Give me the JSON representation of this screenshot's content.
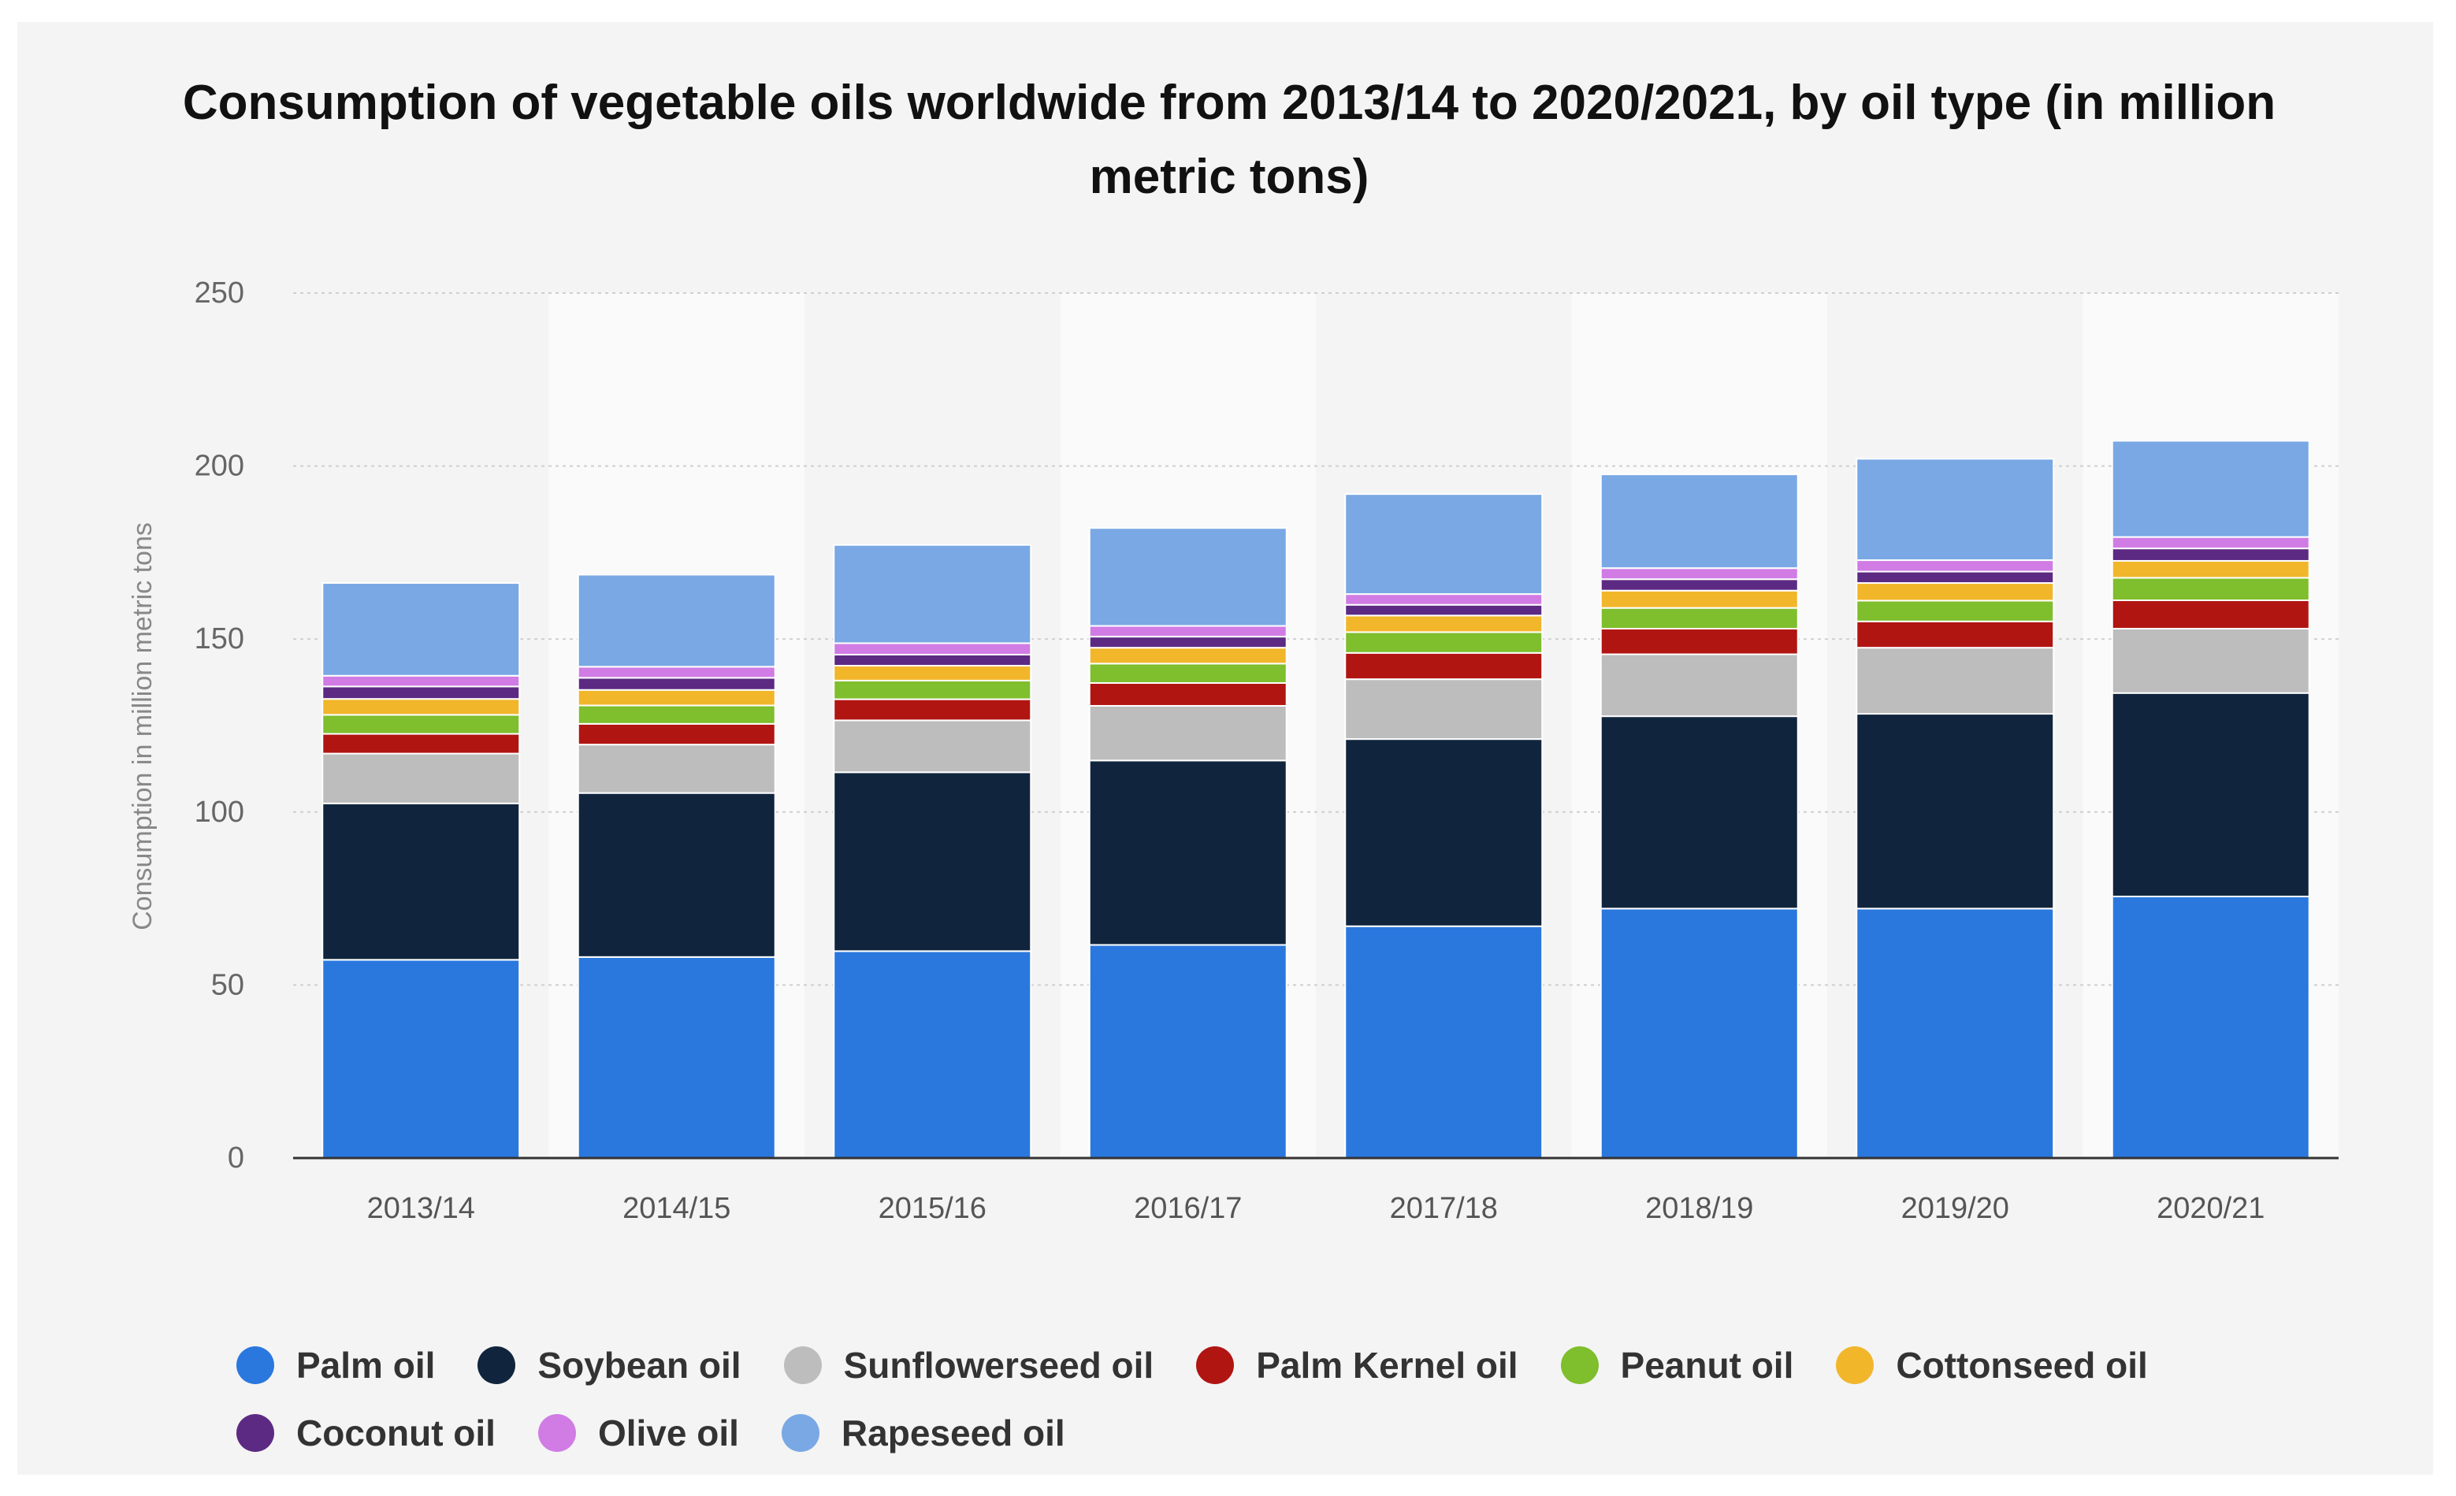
{
  "chart_data": {
    "type": "bar",
    "stacked": true,
    "title": "Consumption of vegetable oils worldwide from 2013/14 to 2020/2021, by oil type (in million metric tons)",
    "xlabel": "",
    "ylabel": "Consumption in million metric tons",
    "ylim": [
      0,
      250
    ],
    "yticks": [
      0,
      50,
      100,
      150,
      200,
      250
    ],
    "grid": true,
    "legend_position": "bottom",
    "categories": [
      "2013/14",
      "2014/15",
      "2015/16",
      "2016/17",
      "2017/18",
      "2018/19",
      "2019/20",
      "2020/21"
    ],
    "series": [
      {
        "name": "Palm oil",
        "color": "#2a78de",
        "values": [
          57.3,
          58.1,
          59.8,
          61.6,
          67.0,
          72.1,
          72.1,
          75.6
        ]
      },
      {
        "name": "Soybean oil",
        "color": "#10253d",
        "values": [
          45.2,
          47.4,
          51.7,
          53.3,
          54.1,
          55.6,
          56.3,
          58.8
        ]
      },
      {
        "name": "Sunflowerseed oil",
        "color": "#bdbdbd",
        "values": [
          14.4,
          14.0,
          15.0,
          15.8,
          17.3,
          17.9,
          19.1,
          18.6
        ]
      },
      {
        "name": "Palm Kernel oil",
        "color": "#b11512",
        "values": [
          5.7,
          6.0,
          6.1,
          6.6,
          7.6,
          7.4,
          7.6,
          8.2
        ]
      },
      {
        "name": "Peanut oil",
        "color": "#7fbe2c",
        "values": [
          5.5,
          5.3,
          5.4,
          5.6,
          6.0,
          6.0,
          6.0,
          6.5
        ]
      },
      {
        "name": "Cottonseed oil",
        "color": "#f2b62b",
        "values": [
          4.6,
          4.5,
          4.3,
          4.6,
          4.8,
          5.0,
          5.1,
          4.9
        ]
      },
      {
        "name": "Coconut oil",
        "color": "#5c2a82",
        "values": [
          3.6,
          3.5,
          3.2,
          3.2,
          3.1,
          3.3,
          3.3,
          3.6
        ]
      },
      {
        "name": "Olive oil",
        "color": "#d07ce4",
        "values": [
          3.1,
          3.2,
          3.3,
          3.1,
          3.1,
          3.2,
          3.3,
          3.3
        ]
      },
      {
        "name": "Rapeseed oil",
        "color": "#79a8e4",
        "values": [
          26.8,
          26.6,
          28.4,
          28.3,
          28.9,
          27.1,
          29.3,
          27.8
        ]
      }
    ]
  }
}
